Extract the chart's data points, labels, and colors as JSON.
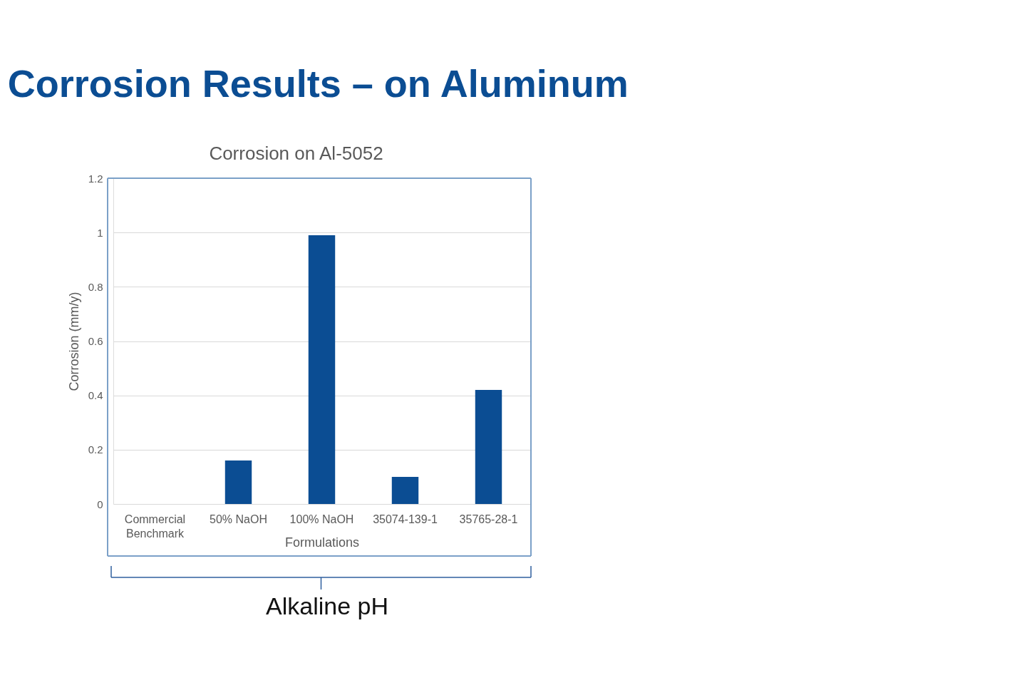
{
  "chart_data": {
    "type": "bar",
    "title": "Corrosion Results – on Aluminum",
    "subtitle": "Corrosion on Al-5052",
    "xlabel": "Formulations",
    "ylabel": "Corrosion (mm/y)",
    "annotations": [
      "Alkaline pH"
    ],
    "categories": [
      "Commercial Benchmark",
      "50% NaOH",
      "100% NaOH",
      "35074-139-1",
      "35765-28-1"
    ],
    "values": [
      null,
      0.16,
      0.99,
      0.1,
      0.42
    ],
    "color": "#0b4d93",
    "ylim": [
      0,
      1.2
    ],
    "yticks": [
      0,
      0.2,
      0.4,
      0.6,
      0.8,
      1,
      1.2
    ],
    "grid": "y"
  }
}
